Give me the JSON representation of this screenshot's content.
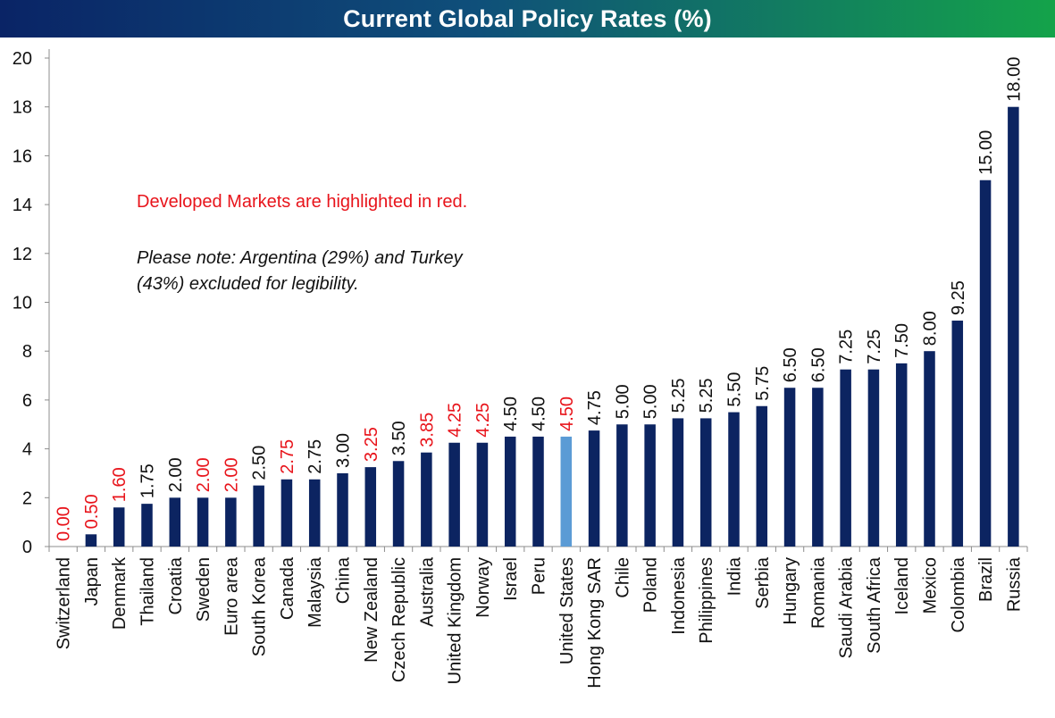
{
  "title": "Current Global Policy Rates (%)",
  "notes": {
    "developed": "Developed Markets are highlighted in red.",
    "excluded_line1": "Please note: Argentina (29%) and Turkey",
    "excluded_line2": "(43%) excluded for legibility."
  },
  "colors": {
    "bar": "#0c2461",
    "highlight_bar": "#5b9bd5",
    "developed_label": "#e8141b",
    "label": "#111111",
    "title_start": "#0a2466",
    "title_end": "#14a34a"
  },
  "chart_data": {
    "type": "bar",
    "title": "Current Global Policy Rates (%)",
    "xlabel": "",
    "ylabel": "",
    "ylim": [
      0,
      20
    ],
    "yticks": [
      0,
      2,
      4,
      6,
      8,
      10,
      12,
      14,
      16,
      18,
      20
    ],
    "grid": false,
    "categories": [
      "Switzerland",
      "Japan",
      "Denmark",
      "Thailand",
      "Croatia",
      "Sweden",
      "Euro area",
      "South Korea",
      "Canada",
      "Malaysia",
      "China",
      "New Zealand",
      "Czech Republic",
      "Australia",
      "United Kingdom",
      "Norway",
      "Israel",
      "Peru",
      "United States",
      "Hong Kong SAR",
      "Chile",
      "Poland",
      "Indonesia",
      "Philippines",
      "India",
      "Serbia",
      "Hungary",
      "Romania",
      "Saudi Arabia",
      "South Africa",
      "Iceland",
      "Mexico",
      "Colombia",
      "Brazil",
      "Russia"
    ],
    "values": [
      0,
      0.5,
      1.6,
      1.75,
      2,
      2,
      2,
      2.5,
      2.75,
      2.75,
      3,
      3.25,
      3.5,
      3.85,
      4.25,
      4.25,
      4.5,
      4.5,
      4.5,
      4.75,
      5,
      5,
      5.25,
      5.25,
      5.5,
      5.75,
      6.5,
      6.5,
      7.25,
      7.25,
      7.5,
      8,
      9.25,
      15,
      18
    ],
    "value_labels": [
      "0.00",
      "0.50",
      "1.60",
      "1.75",
      "2.00",
      "2.00",
      "2.00",
      "2.50",
      "2.75",
      "2.75",
      "3.00",
      "3.25",
      "3.50",
      "3.85",
      "4.25",
      "4.25",
      "4.50",
      "4.50",
      "4.50",
      "4.75",
      "5.00",
      "5.00",
      "5.25",
      "5.25",
      "5.50",
      "5.75",
      "6.50",
      "6.50",
      "7.25",
      "7.25",
      "7.50",
      "8.00",
      "9.25",
      "15.00",
      "18.00"
    ],
    "developed": [
      "Switzerland",
      "Japan",
      "Denmark",
      "Sweden",
      "Euro area",
      "Canada",
      "New Zealand",
      "Australia",
      "United Kingdom",
      "Norway",
      "United States"
    ],
    "highlight": "United States"
  }
}
